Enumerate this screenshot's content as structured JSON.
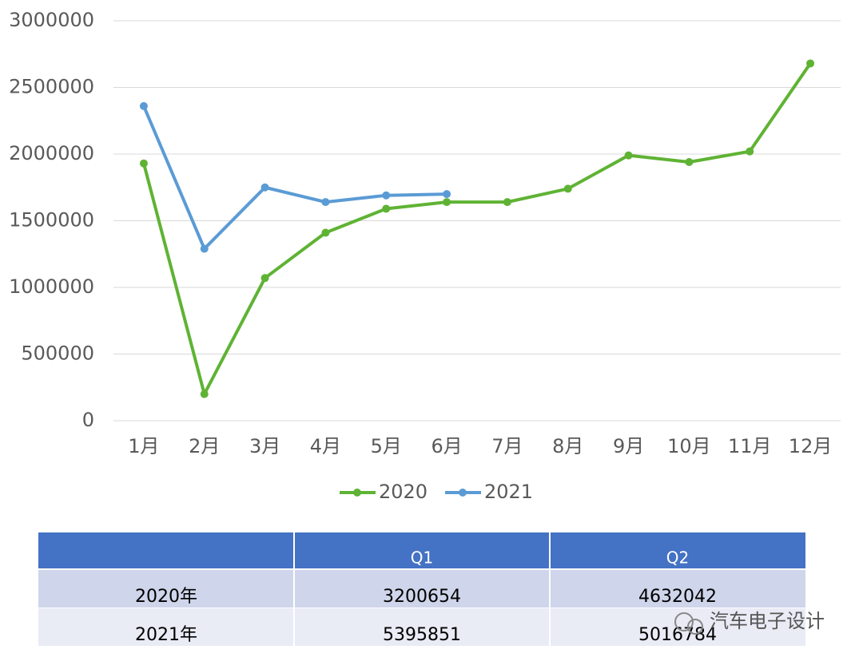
{
  "chart_data": {
    "type": "line",
    "categories": [
      "1月",
      "2月",
      "3月",
      "4月",
      "5月",
      "6月",
      "7月",
      "8月",
      "9月",
      "10月",
      "11月",
      "12月"
    ],
    "series": [
      {
        "name": "2020",
        "color": "#5fb334",
        "values": [
          1930000,
          200000,
          1070000,
          1410000,
          1590000,
          1640000,
          1640000,
          1740000,
          1990000,
          1940000,
          2020000,
          2680000
        ]
      },
      {
        "name": "2021",
        "color": "#5b9bd5",
        "values": [
          2360000,
          1290000,
          1750000,
          1640000,
          1690000,
          1700000,
          null,
          null,
          null,
          null,
          null,
          null
        ]
      }
    ],
    "ylim": [
      0,
      3000000
    ],
    "yticks": [
      0,
      500000,
      1000000,
      1500000,
      2000000,
      2500000,
      3000000
    ],
    "grid": true,
    "legend": "bottom"
  },
  "table": {
    "columns": [
      "Q1",
      "Q2"
    ],
    "rows": [
      {
        "label": "2020年",
        "values": [
          "3200654",
          "4632042"
        ]
      },
      {
        "label": "2021年",
        "values": [
          "5395851",
          "5016784"
        ]
      }
    ]
  },
  "watermark": "汽车电子设计"
}
